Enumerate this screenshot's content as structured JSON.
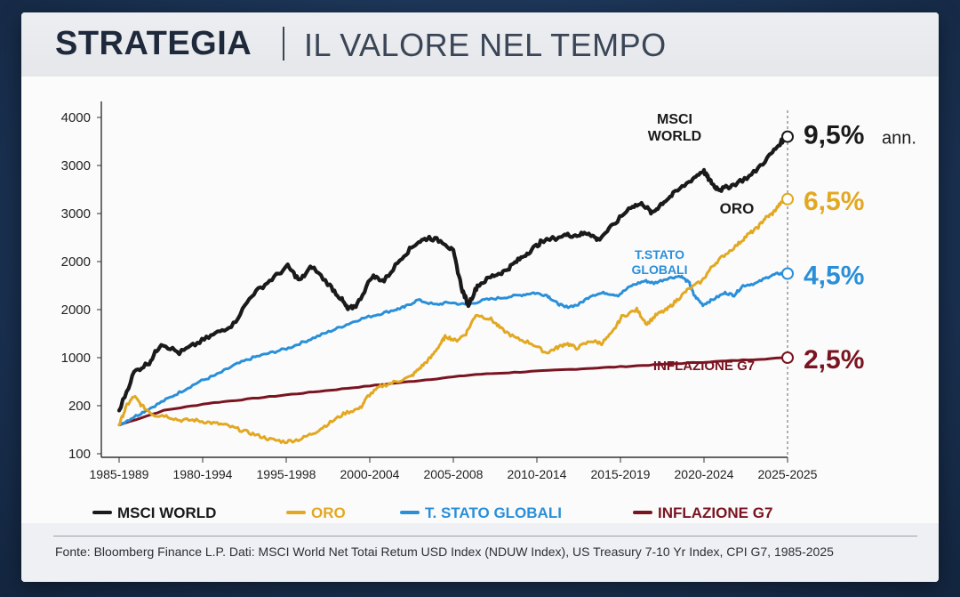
{
  "header": {
    "title_strong": "STRATEGIA",
    "title_sub": "IL VALORE NEL TEMPO"
  },
  "footer": {
    "source": "Fonte: Bloomberg Finance L.P. Dati: MSCI World Net Totai Retum USD Index (NDUW Index), US Treasury 7-10 Yr Index, CPI G7, 1985-2025"
  },
  "chart_data": {
    "type": "line",
    "title": "IL VALORE NEL TEMPO",
    "y_ticks": [
      "100",
      "200",
      "1000",
      "2000",
      "2000",
      "3000",
      "3000",
      "4000"
    ],
    "x_ticks": [
      "1985-1989",
      "1980-1994",
      "1995-1998",
      "2000-2004",
      "2005-2008",
      "2010-2014",
      "2015-2019",
      "2020-2024",
      "2025-2025"
    ],
    "grid": false,
    "legend_position": "bottom",
    "y_position_scale": [
      0,
      7
    ],
    "series": [
      {
        "name": "MSCI WORLD",
        "chart_label": "MSCI WORLD",
        "color": "#1a1a1a",
        "end_label": "9,5%",
        "end_suffix": "ann.",
        "points": [
          [
            0,
            0.9
          ],
          [
            0.25,
            1.7
          ],
          [
            0.5,
            1.9
          ],
          [
            0.7,
            2.3
          ],
          [
            1,
            2.1
          ],
          [
            1.3,
            2.3
          ],
          [
            1.6,
            2.5
          ],
          [
            1.9,
            2.7
          ],
          [
            2.2,
            3.3
          ],
          [
            2.5,
            3.6
          ],
          [
            2.8,
            3.9
          ],
          [
            3,
            3.6
          ],
          [
            3.2,
            3.9
          ],
          [
            3.5,
            3.5
          ],
          [
            3.7,
            3.2
          ],
          [
            3.8,
            3.0
          ],
          [
            3.95,
            3.1
          ],
          [
            4.2,
            3.7
          ],
          [
            4.4,
            3.6
          ],
          [
            4.7,
            4.1
          ],
          [
            4.95,
            4.4
          ],
          [
            5.15,
            4.5
          ],
          [
            5.4,
            4.4
          ],
          [
            5.55,
            4.2
          ],
          [
            5.7,
            3.4
          ],
          [
            5.8,
            3.1
          ],
          [
            5.95,
            3.5
          ],
          [
            6.2,
            3.7
          ],
          [
            6.4,
            3.8
          ],
          [
            6.6,
            4.0
          ],
          [
            6.8,
            4.2
          ],
          [
            7,
            4.4
          ],
          [
            7.4,
            4.55
          ],
          [
            7.6,
            4.55
          ],
          [
            7.8,
            4.6
          ],
          [
            7.95,
            4.45
          ],
          [
            8.2,
            4.75
          ],
          [
            8.5,
            5.15
          ],
          [
            8.7,
            5.2
          ],
          [
            8.85,
            5.0
          ],
          [
            9.0,
            5.2
          ],
          [
            9.2,
            5.4
          ],
          [
            9.5,
            5.7
          ],
          [
            9.7,
            5.9
          ],
          [
            9.8,
            5.7
          ],
          [
            9.9,
            5.55
          ],
          [
            10.0,
            5.5
          ],
          [
            10.2,
            5.6
          ],
          [
            10.5,
            5.8
          ],
          [
            10.8,
            6.2
          ],
          [
            11.0,
            6.5
          ],
          [
            11.1,
            6.6
          ]
        ]
      },
      {
        "name": "ORO",
        "chart_label": "ORO",
        "color": "#e2a821",
        "end_label": "6,5%",
        "points": [
          [
            0,
            0.6
          ],
          [
            0.15,
            1.0
          ],
          [
            0.3,
            1.2
          ],
          [
            0.45,
            1.0
          ],
          [
            0.7,
            0.8
          ],
          [
            0.9,
            0.8
          ],
          [
            1.2,
            0.7
          ],
          [
            1.5,
            0.7
          ],
          [
            1.8,
            0.65
          ],
          [
            2.1,
            0.6
          ],
          [
            2.4,
            0.5
          ],
          [
            2.7,
            0.4
          ],
          [
            3,
            0.3
          ],
          [
            3.3,
            0.25
          ],
          [
            3.6,
            0.3
          ],
          [
            3.9,
            0.45
          ],
          [
            4.2,
            0.65
          ],
          [
            4.5,
            0.85
          ],
          [
            4.8,
            0.95
          ],
          [
            4.95,
            1.2
          ],
          [
            5.2,
            1.4
          ],
          [
            5.5,
            1.5
          ],
          [
            5.8,
            1.6
          ],
          [
            6.0,
            1.8
          ],
          [
            6.2,
            2.0
          ],
          [
            6.4,
            2.3
          ],
          [
            6.5,
            2.45
          ],
          [
            6.7,
            2.35
          ],
          [
            6.9,
            2.5
          ],
          [
            7.1,
            2.9
          ],
          [
            7.4,
            2.8
          ],
          [
            7.6,
            2.6
          ],
          [
            7.9,
            2.4
          ],
          [
            8.2,
            2.3
          ],
          [
            8.5,
            2.1
          ],
          [
            8.7,
            2.2
          ],
          [
            8.9,
            2.3
          ],
          [
            9.1,
            2.2
          ],
          [
            9.4,
            2.35
          ],
          [
            9.6,
            2.3
          ],
          [
            9.8,
            2.5
          ],
          [
            10.0,
            2.85
          ],
          [
            10.3,
            3.0
          ],
          [
            10.5,
            2.7
          ],
          [
            10.7,
            2.9
          ],
          [
            10.9,
            3.0
          ],
          [
            11.1,
            3.2
          ],
          [
            11.3,
            3.4
          ],
          [
            11.6,
            3.6
          ],
          [
            11.8,
            3.9
          ],
          [
            12.0,
            4.1
          ],
          [
            12.3,
            4.35
          ],
          [
            12.5,
            4.55
          ],
          [
            12.7,
            4.7
          ],
          [
            12.85,
            4.9
          ],
          [
            13.0,
            5.0
          ],
          [
            13.15,
            5.2
          ],
          [
            13.3,
            5.3
          ]
        ]
      },
      {
        "name": "T. STATO GLOBALI",
        "chart_label": "T.STATO GLOBALI",
        "color": "#2a8fd9",
        "end_label": "4,5%",
        "points": [
          [
            0,
            0.6
          ],
          [
            0.3,
            0.75
          ],
          [
            0.6,
            0.9
          ],
          [
            1,
            1.1
          ],
          [
            1.4,
            1.3
          ],
          [
            1.8,
            1.5
          ],
          [
            2.2,
            1.65
          ],
          [
            2.6,
            1.85
          ],
          [
            3,
            2.0
          ],
          [
            3.4,
            2.1
          ],
          [
            3.8,
            2.2
          ],
          [
            4.2,
            2.35
          ],
          [
            4.6,
            2.5
          ],
          [
            5,
            2.65
          ],
          [
            5.4,
            2.8
          ],
          [
            5.8,
            2.9
          ],
          [
            6.2,
            3.0
          ],
          [
            6.4,
            3.05
          ],
          [
            6.7,
            3.2
          ],
          [
            7.1,
            3.1
          ],
          [
            7.4,
            3.15
          ],
          [
            7.8,
            3.1
          ],
          [
            8.2,
            3.2
          ],
          [
            8.6,
            3.25
          ],
          [
            9.0,
            3.3
          ],
          [
            9.3,
            3.35
          ],
          [
            9.6,
            3.3
          ],
          [
            9.8,
            3.15
          ],
          [
            10.0,
            3.05
          ],
          [
            10.3,
            3.1
          ],
          [
            10.6,
            3.3
          ],
          [
            10.9,
            3.35
          ],
          [
            11.2,
            3.3
          ],
          [
            11.5,
            3.5
          ],
          [
            11.8,
            3.6
          ],
          [
            12.0,
            3.55
          ],
          [
            12.3,
            3.65
          ],
          [
            12.6,
            3.7
          ],
          [
            12.8,
            3.55
          ],
          [
            12.9,
            3.3
          ],
          [
            13.1,
            3.1
          ],
          [
            13.3,
            3.2
          ],
          [
            13.6,
            3.35
          ],
          [
            13.8,
            3.3
          ],
          [
            14.0,
            3.5
          ],
          [
            14.3,
            3.55
          ],
          [
            14.6,
            3.7
          ],
          [
            14.8,
            3.75
          ],
          [
            15.0,
            3.75
          ]
        ]
      },
      {
        "name": "INFLAZIONE G7",
        "chart_label": "INFLAZIONE G7",
        "color": "#7a1420",
        "end_label": "2,5%",
        "points": [
          [
            0,
            0.6
          ],
          [
            1,
            0.9
          ],
          [
            2,
            1.05
          ],
          [
            3,
            1.15
          ],
          [
            4,
            1.25
          ],
          [
            5,
            1.35
          ],
          [
            6,
            1.45
          ],
          [
            7,
            1.55
          ],
          [
            8,
            1.65
          ],
          [
            9,
            1.7
          ],
          [
            10,
            1.75
          ],
          [
            11,
            1.8
          ],
          [
            12,
            1.85
          ],
          [
            13,
            1.9
          ],
          [
            14,
            1.95
          ],
          [
            15,
            2.0
          ]
        ]
      }
    ]
  }
}
